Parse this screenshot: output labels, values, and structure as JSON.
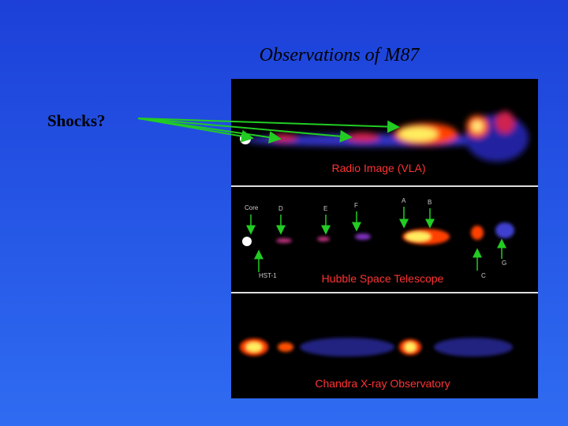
{
  "title": "Observations of M87",
  "annotation": "Shocks?",
  "panels": [
    {
      "caption": "Radio Image (VLA)"
    },
    {
      "caption": "Hubble Space Telescope",
      "labels": [
        "Core",
        "D",
        "E",
        "F",
        "A",
        "B",
        "HST-1",
        "C",
        "G"
      ]
    },
    {
      "caption": "Chandra X-ray Observatory"
    }
  ]
}
